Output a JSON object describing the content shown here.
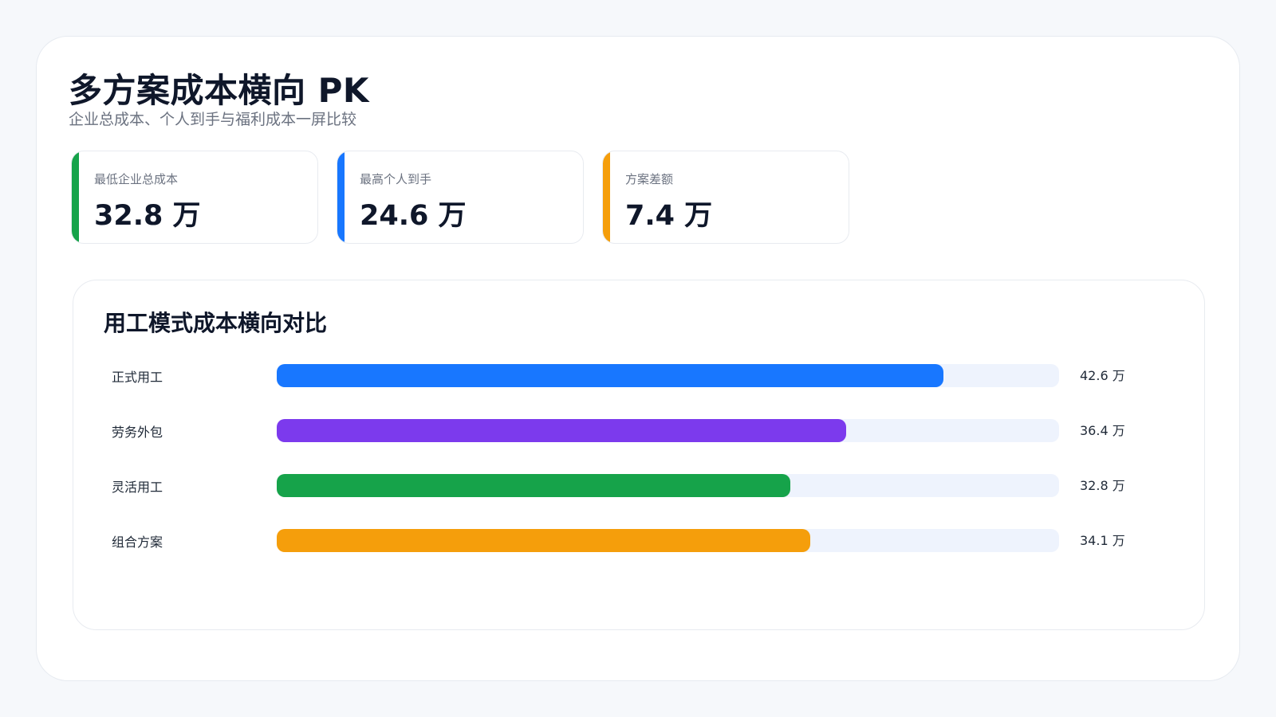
{
  "header": {
    "title": "多方案成本横向 PK",
    "subtitle": "企业总成本、个人到手与福利成本一屏比较"
  },
  "kpis": [
    {
      "label": "最低企业总成本",
      "value": "32.8 万",
      "color": "#16a34a"
    },
    {
      "label": "最高个人到手",
      "value": "24.6 万",
      "color": "#1877ff"
    },
    {
      "label": "方案差额",
      "value": "7.4 万",
      "color": "#f59e0b"
    }
  ],
  "chart_data": {
    "type": "bar",
    "orientation": "horizontal",
    "title": "用工模式成本横向对比",
    "categories": [
      "正式用工",
      "劳务外包",
      "灵活用工",
      "组合方案"
    ],
    "values": [
      42.6,
      36.4,
      32.8,
      34.1
    ],
    "value_labels": [
      "42.6 万",
      "36.4 万",
      "32.8 万",
      "34.1 万"
    ],
    "colors": [
      "#1877ff",
      "#7c3aed",
      "#16a34a",
      "#f59e0b"
    ],
    "xlim": [
      0,
      50
    ],
    "grid": false,
    "legend": "none"
  }
}
